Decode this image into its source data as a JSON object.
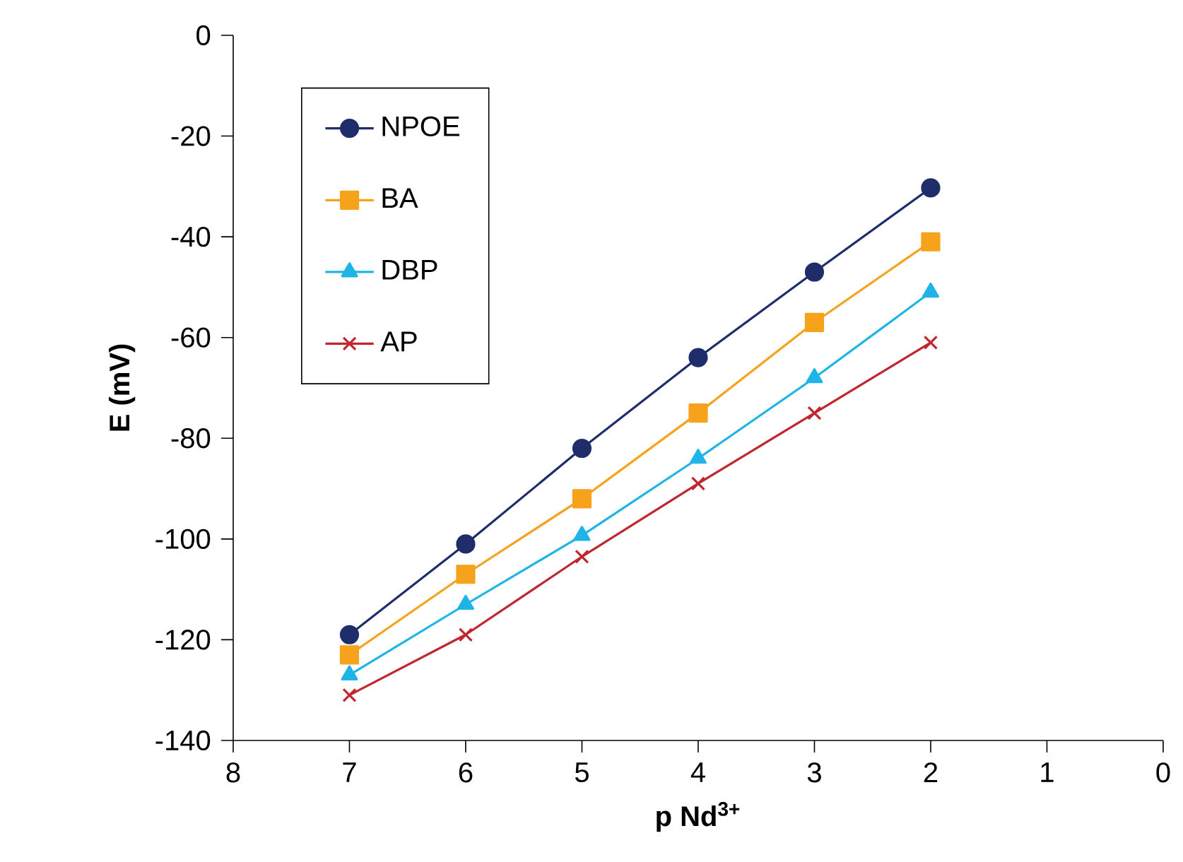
{
  "chart_data": {
    "type": "line",
    "xlabel": "p Nd$^{3+}$",
    "ylabel": "E (mV)",
    "x": [
      7,
      6,
      5,
      4,
      3,
      2
    ],
    "xlim": [
      8,
      0
    ],
    "xticks": [
      8,
      7,
      6,
      5,
      4,
      3,
      2,
      1,
      0
    ],
    "ylim": [
      -140,
      0
    ],
    "yticks": [
      -140,
      -120,
      -100,
      -80,
      -60,
      -40,
      -20,
      0
    ],
    "legend": "top left",
    "grid": false,
    "line_style": "solid",
    "series": [
      {
        "name": "NPOE",
        "color": "#1f2d6b",
        "marker": "circle",
        "values": [
          -119,
          -101,
          -82,
          -64,
          -47,
          -30.3
        ]
      },
      {
        "name": "BA",
        "color": "#f7a21b",
        "marker": "square",
        "values": [
          -123,
          -107,
          -92,
          -75,
          -57,
          -41
        ]
      },
      {
        "name": "DBP",
        "color": "#1fb4e8",
        "marker": "triangle",
        "values": [
          -127,
          -113,
          -99.3,
          -84,
          -68,
          -51
        ]
      },
      {
        "name": "AP",
        "color": "#c0262d",
        "marker": "cross",
        "values": [
          -131,
          -119,
          -103.5,
          -89,
          -75,
          -61
        ]
      }
    ]
  }
}
